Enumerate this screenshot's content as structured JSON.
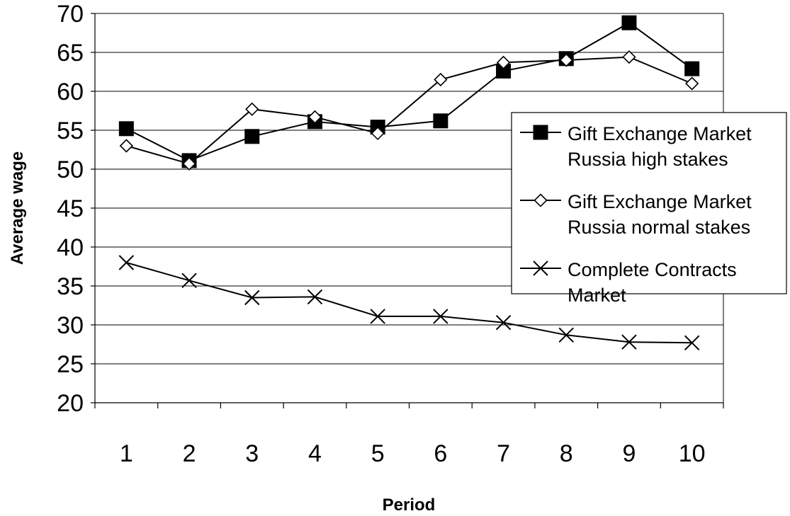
{
  "chart_data": {
    "type": "line",
    "title": "",
    "xlabel": "Period",
    "ylabel": "Average wage",
    "categories": [
      "1",
      "2",
      "3",
      "4",
      "5",
      "6",
      "7",
      "8",
      "9",
      "10"
    ],
    "ylim": [
      20,
      70
    ],
    "yticks": [
      20,
      25,
      30,
      35,
      40,
      45,
      50,
      55,
      60,
      65,
      70
    ],
    "grid": true,
    "legend_position": "right",
    "series": [
      {
        "name": "Gift Exchange Market Russia high stakes",
        "legend_lines": [
          "Gift Exchange Market",
          "Russia high stakes"
        ],
        "marker": "filled-square",
        "color": "#000000",
        "values": [
          55.2,
          51.1,
          54.2,
          56.1,
          55.4,
          56.2,
          62.6,
          64.2,
          68.8,
          62.9
        ]
      },
      {
        "name": "Gift Exchange Market Russia normal stakes",
        "legend_lines": [
          "Gift Exchange Market",
          "Russia normal stakes"
        ],
        "marker": "open-diamond",
        "color": "#000000",
        "values": [
          53.0,
          50.7,
          57.7,
          56.7,
          54.6,
          61.5,
          63.7,
          64.0,
          64.4,
          61.0
        ]
      },
      {
        "name": "Complete Contracts Market",
        "legend_lines": [
          "Complete Contracts",
          "Market"
        ],
        "marker": "x-cross",
        "color": "#000000",
        "values": [
          38.0,
          35.7,
          33.5,
          33.6,
          31.1,
          31.1,
          30.3,
          28.7,
          27.8,
          27.7
        ]
      }
    ]
  }
}
